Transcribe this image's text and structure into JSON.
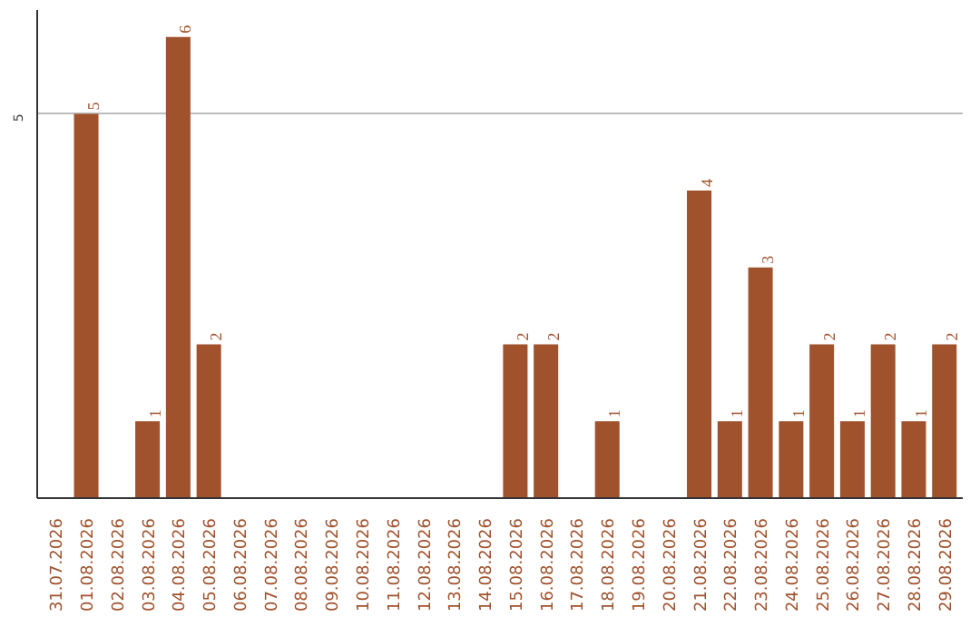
{
  "chart_data": {
    "type": "bar",
    "categories": [
      "31.07.2026",
      "01.08.2026",
      "02.08.2026",
      "03.08.2026",
      "04.08.2026",
      "05.08.2026",
      "06.08.2026",
      "07.08.2026",
      "08.08.2026",
      "09.08.2026",
      "10.08.2026",
      "11.08.2026",
      "12.08.2026",
      "13.08.2026",
      "14.08.2026",
      "15.08.2026",
      "16.08.2026",
      "17.08.2026",
      "18.08.2026",
      "19.08.2026",
      "20.08.2026",
      "21.08.2026",
      "22.08.2026",
      "23.08.2026",
      "24.08.2026",
      "25.08.2026",
      "26.08.2026",
      "27.08.2026",
      "28.08.2026",
      "29.08.2026"
    ],
    "values": [
      0,
      5,
      0,
      1,
      6,
      2,
      0,
      0,
      0,
      0,
      0,
      0,
      0,
      0,
      0,
      2,
      2,
      0,
      1,
      0,
      0,
      4,
      1,
      3,
      1,
      2,
      1,
      2,
      1,
      2
    ],
    "value_labels": [
      null,
      "5",
      null,
      "1",
      "6",
      "2",
      null,
      null,
      null,
      null,
      null,
      null,
      null,
      null,
      null,
      "2",
      "2",
      null,
      "1",
      null,
      null,
      "4",
      "1",
      "3",
      "1",
      "2",
      "1",
      "2",
      "1",
      "2"
    ],
    "color": "#a0522d",
    "ylim": [
      0,
      6.35
    ],
    "yticks": [
      5
    ],
    "grid": "y"
  }
}
